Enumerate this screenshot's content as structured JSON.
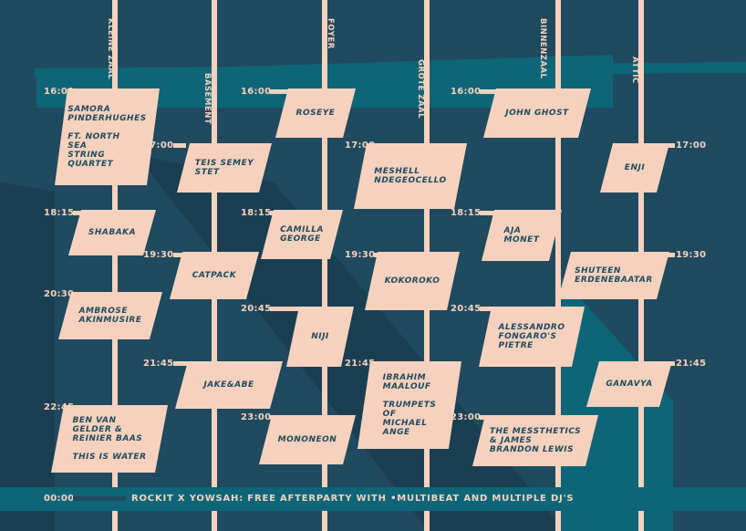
{
  "colors": {
    "background": "#1f4a5f",
    "panel": "#0f6578",
    "shape_dark": "#1a3f52",
    "card": "#f6d2be",
    "card_text": "#1f4a5f"
  },
  "lanes": [
    {
      "label": "KLEINE ZAAL"
    },
    {
      "label": "BASEMENT"
    },
    {
      "label": "FOYER"
    },
    {
      "label": "GROTE ZAAL"
    },
    {
      "label": "BINNENZAAL"
    },
    {
      "label": "ATTIC"
    }
  ],
  "times": [
    "16:00",
    "18:15",
    "20:30",
    "22:45",
    "17:00",
    "19:30",
    "21:45",
    "16:00",
    "18:15",
    "20:45",
    "23:00",
    "17:00",
    "19:30",
    "21:45",
    "16:00",
    "18:15",
    "20:45",
    "23:00",
    "17:00",
    "19:30",
    "21:45"
  ],
  "acts": [
    "SAMORA\nPINDERHUGHES\n\nFT. NORTH\nSEA\nSTRING\nQUARTET",
    "SHABAKA",
    "AMBROSE\nAKINMUSIRE",
    "BEN VAN\nGELDER  &\nREINIER BAAS\n\nTHIS IS WATER",
    "TEIS SEMEY\nSTET",
    "CATPACK",
    "JAKE&ABE",
    "ROSEYE",
    "CAMILLA\nGEORGE",
    "NIJI",
    "MONONEON",
    "MESHELL\nNDEGEOCELLO",
    "KOKOROKO",
    "IBRAHIM\nMAALOUF\n\nTRUMPETS\nOF\nMICHAEL\nANGE",
    "JOHN GHOST",
    "AJA\nMONET",
    "ALESSANDRO\nFONGARO'S\nPIETRE",
    "THE MESSTHETICS\n& JAMES\nBRANDON LEWIS",
    "ENJI",
    "SHUTEEN\nERDENEBAATAR",
    "GANAVYA"
  ],
  "footer": {
    "time": "00:00",
    "text": "ROCKIT X YOWSAH: FREE AFTERPARTY WITH •MULTIBEAT AND MULTIPLE DJ'S"
  }
}
